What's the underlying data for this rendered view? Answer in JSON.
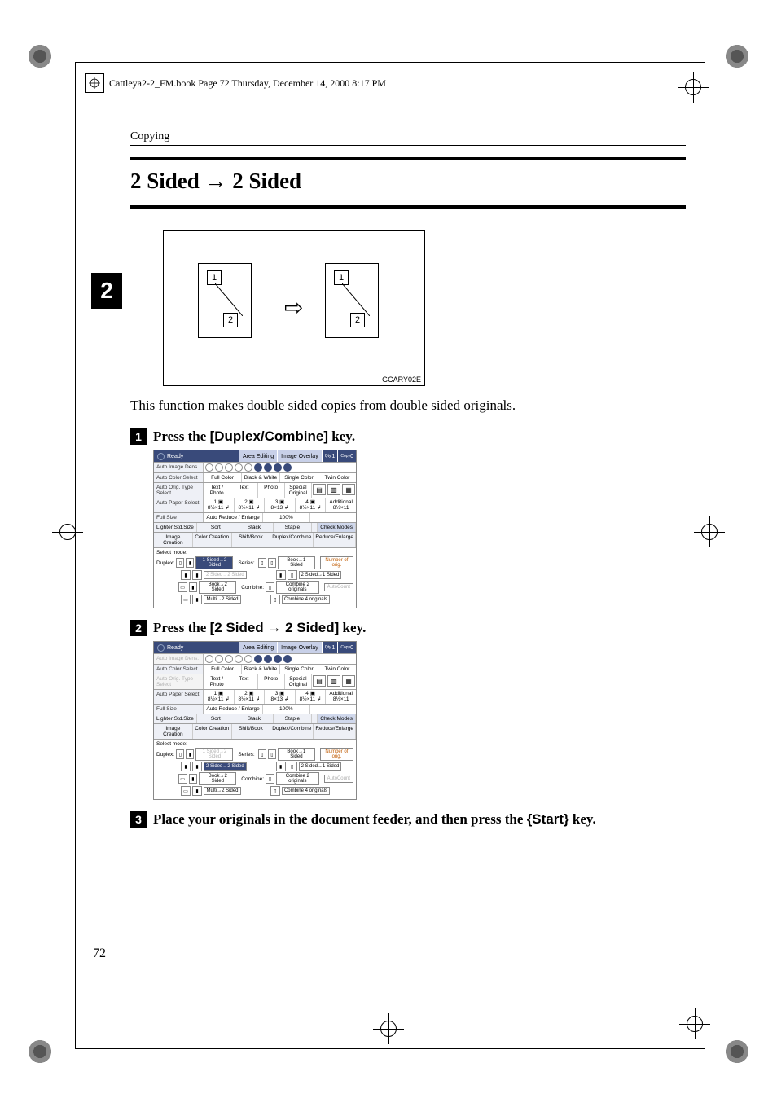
{
  "header_note": "Cattleya2-2_FM.book  Page 72  Thursday, December 14, 2000  8:17 PM",
  "section_label": "Copying",
  "title": "2 Sided → 2 Sided",
  "chapter_badge": "2",
  "figure": {
    "labels": [
      "1",
      "2",
      "1",
      "2"
    ],
    "code": "GCARY02E"
  },
  "body_text": "This function makes double sided copies from double sided originals.",
  "steps": [
    {
      "n": "1",
      "pre": "Press the ",
      "key": "[Duplex/Combine]",
      "post": " key."
    },
    {
      "n": "2",
      "pre": "Press the ",
      "key": "[2 Sided → 2 Sided]",
      "post": " key."
    },
    {
      "n": "3",
      "pre": "Place your originals in the document feeder, and then press the ",
      "keystart": "{Start}",
      "post": " key."
    }
  ],
  "screens": {
    "top": {
      "ready": "Ready",
      "tabs": [
        "Area Editing",
        "Image Overlay"
      ],
      "counts": {
        "qty": "1",
        "copy": "0",
        "qty_lab": "Qty.",
        "copy_lab": "Copy"
      }
    },
    "rows1": {
      "auto_image_dens": "Auto Image Dens.",
      "auto_color_select": "Auto Color Select",
      "color_opts": [
        "Full Color",
        "Black & White",
        "Single Color",
        "Twin Color"
      ],
      "auto_orig_type": "Auto Orig. Type Select",
      "orig_opts": [
        "Text / Photo",
        "Text",
        "Photo",
        "Special Original"
      ],
      "auto_paper": "Auto Paper Select",
      "paper_opts": [
        "1 ▣\n8½×11 ↲",
        "2 ▣\n8½×11 ↲",
        "3 ▣\n8×13 ↲",
        "4 ▣\n8½×11 ↲",
        "Additional\n8½×11"
      ],
      "full_size": "Full Size",
      "auto_reduce": "Auto Reduce / Enlarge",
      "pct": "100%",
      "lighter": "Lighter:Std.Size",
      "sort": "Sort",
      "stack": "Stack",
      "staple": "Staple",
      "check": "Check Modes"
    },
    "tabs2": [
      "Image Creation",
      "Color Creation",
      "Shift/Book",
      "Duplex/Combine",
      "Reduce/Enlarge"
    ],
    "modes": {
      "title": "Select mode:",
      "duplex": "Duplex:",
      "series": "Series:",
      "combine": "Combine:",
      "number_of_orig": "Number of orig.",
      "autocount": "AutoCount",
      "rows": [
        {
          "icons": [
            "a",
            "b"
          ],
          "label": "1 Sided→2 Sided"
        },
        {
          "icons": [
            "a",
            "b"
          ],
          "label": "2 Sided→2 Sided"
        },
        {
          "icons": [
            "a",
            "b"
          ],
          "label": "Book→2 Sided"
        },
        {
          "icons": [
            "a",
            "b"
          ],
          "label": "Multi→2 Sided"
        }
      ],
      "series_rows": [
        {
          "icons": [
            "a",
            "b"
          ],
          "label": "Book→1 Sided"
        },
        {
          "icons": [
            "a",
            "b"
          ],
          "label": "2 Sided→1 Sided"
        }
      ],
      "combine_rows": [
        {
          "icons": [
            "a"
          ],
          "label": "Combine 2 originals"
        },
        {
          "icons": [
            "a"
          ],
          "label": "Combine 4 originals"
        }
      ]
    },
    "a_highlight_row1": "1 Sided→2 Sided",
    "b_highlight_row2": "2 Sided→2 Sided"
  },
  "page_number": "72"
}
